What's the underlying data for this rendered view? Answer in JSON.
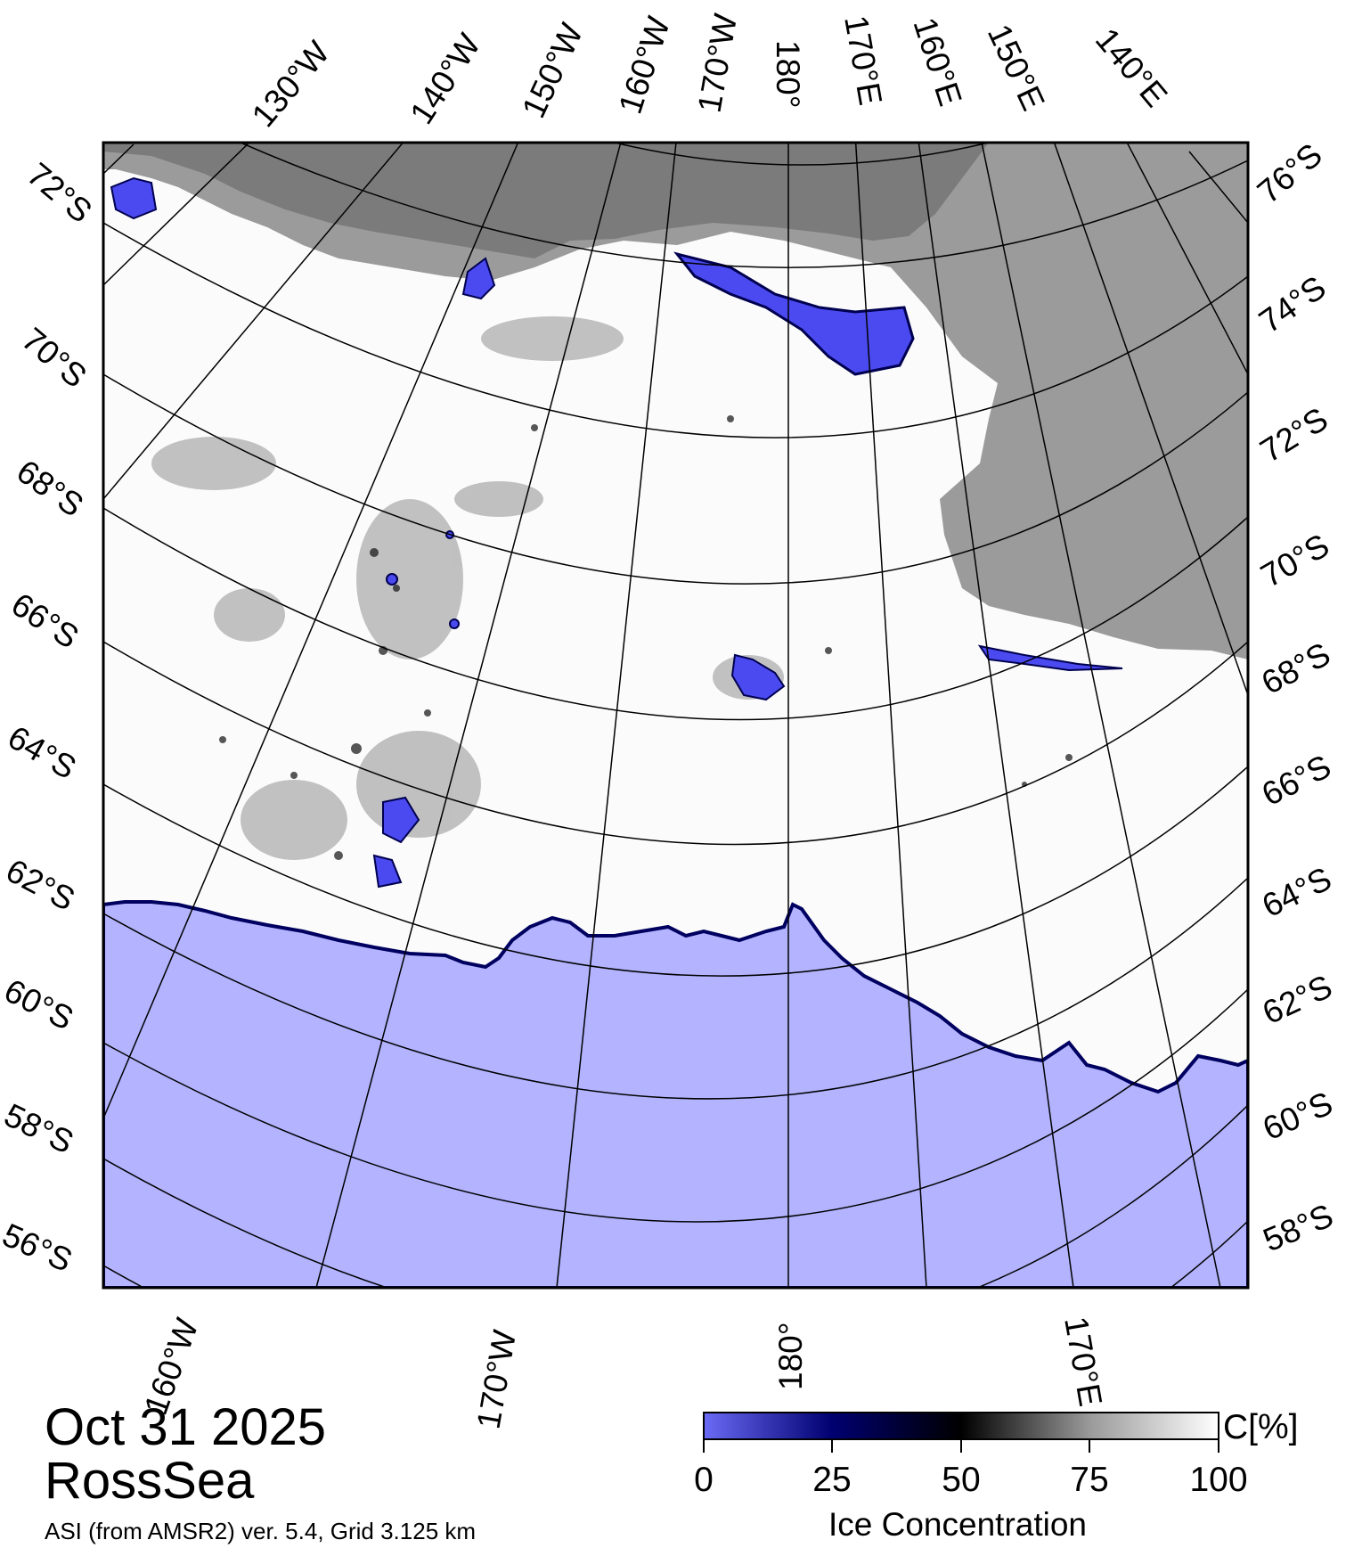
{
  "map": {
    "date": "Oct 31 2025",
    "region": "RossSea",
    "product": "ASI (from AMSR2) ver. 5.4,  Grid 3.125 km",
    "colors": {
      "open_water": "#b3b3ff",
      "land": "#9b9b9b",
      "ice_shelf": "#7b7b7b",
      "frame": "#000000"
    },
    "top_lon_labels": [
      "130°W",
      "140°W",
      "150°W",
      "160°W",
      "170°W",
      "180°",
      "170°E",
      "160°E",
      "150°E",
      "140°E"
    ],
    "left_lat_labels": [
      "72°S",
      "70°S",
      "68°S",
      "66°S",
      "64°S",
      "62°S",
      "60°S",
      "58°S",
      "56°S"
    ],
    "right_lat_labels": [
      "76°S",
      "74°S",
      "72°S",
      "70°S",
      "68°S",
      "66°S",
      "64°S",
      "62°S",
      "60°S",
      "58°S"
    ],
    "bottom_lon_labels": [
      "160°W",
      "170°W",
      "180°",
      "170°E"
    ]
  },
  "colorbar": {
    "title": "Ice Concentration",
    "unit": "C[%]",
    "ticks": [
      "0",
      "25",
      "50",
      "75",
      "100"
    ],
    "colors": [
      "#6a6af5",
      "#000070",
      "#000000",
      "#9a9a9a",
      "#ffffff"
    ]
  }
}
